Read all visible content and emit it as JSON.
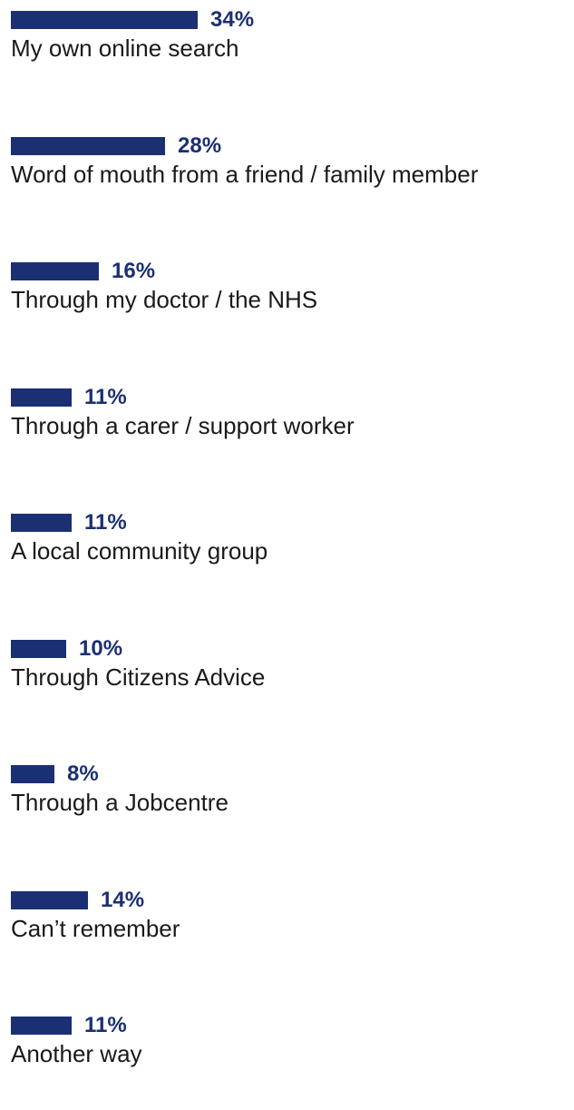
{
  "chart_data": {
    "type": "bar",
    "orientation": "horizontal",
    "categories": [
      "My own online search",
      "Word of mouth from a friend / family member",
      "Through my doctor / the NHS",
      "Through a carer / support worker",
      "A local community group",
      "Through Citizens Advice",
      "Through a Jobcentre",
      "Can’t remember",
      "Another way"
    ],
    "values": [
      34,
      28,
      16,
      11,
      11,
      10,
      8,
      14,
      11
    ],
    "labels": [
      "34%",
      "28%",
      "16%",
      "11%",
      "11%",
      "10%",
      "8%",
      "14%",
      "11%"
    ],
    "unit": "%",
    "bar_color": "#1b2f73",
    "label_color": "#1b2f73",
    "grid": false,
    "legend": "none"
  }
}
